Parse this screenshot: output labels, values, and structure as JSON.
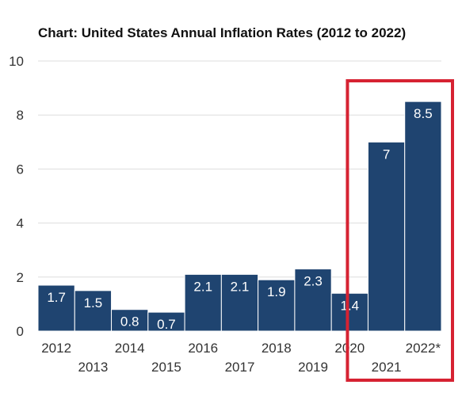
{
  "chart_data": {
    "type": "bar",
    "title": "Chart: United States Annual Inflation Rates (2012 to 2022)",
    "xlabel": "",
    "ylabel": "",
    "categories": [
      "2012",
      "2013",
      "2014",
      "2015",
      "2016",
      "2017",
      "2018",
      "2019",
      "2020",
      "2021",
      "2022*"
    ],
    "values": [
      1.7,
      1.5,
      0.8,
      0.7,
      2.1,
      2.1,
      1.9,
      2.3,
      1.4,
      7,
      8.5
    ],
    "data_labels": [
      "1.7",
      "1.5",
      "0.8",
      "0.7",
      "2.1",
      "2.1",
      "1.9",
      "2.3",
      "1.4",
      "7",
      "8.5"
    ],
    "ylim": [
      0,
      10
    ],
    "yticks": [
      "0",
      "2",
      "4",
      "6",
      "8",
      "10"
    ],
    "grid": true,
    "legend": "none",
    "colors": {
      "bar": "#1f4470",
      "grid": "#dddddd",
      "highlight_box": "#d62232"
    },
    "highlight": {
      "categories": [
        "2021",
        "2022*"
      ]
    }
  }
}
